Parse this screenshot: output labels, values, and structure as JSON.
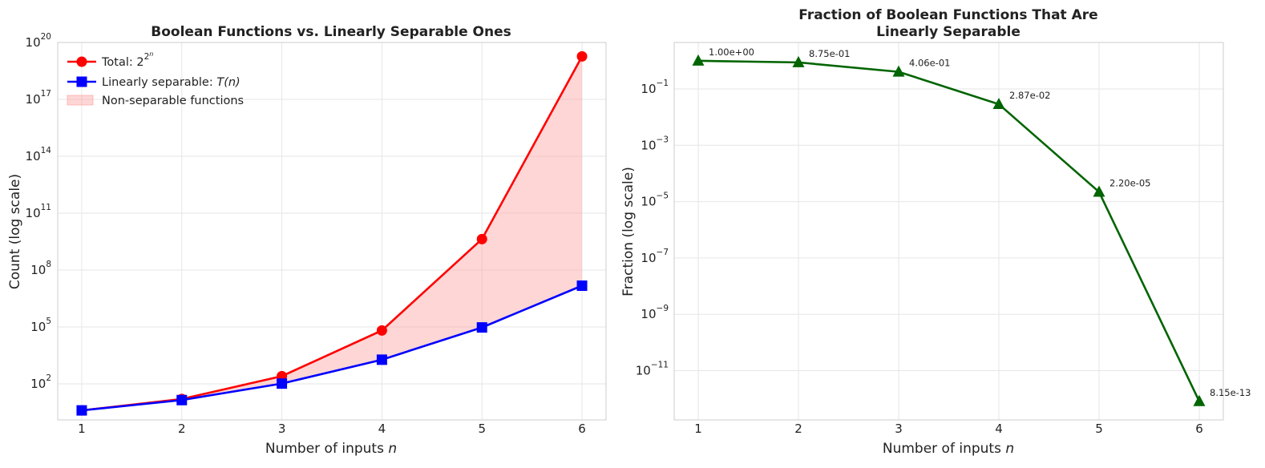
{
  "chart_data": [
    {
      "type": "line",
      "title": "Boolean Functions vs. Linearly Separable Ones",
      "xlabel": "Number of inputs n",
      "ylabel": "Count (log scale)",
      "yscale": "log",
      "grid": true,
      "legend_position": "top-left",
      "x": [
        1,
        2,
        3,
        4,
        5,
        6
      ],
      "x_ticks": [
        "1",
        "2",
        "3",
        "4",
        "5",
        "6"
      ],
      "y_ticks": [
        {
          "base": "10",
          "exp": "2",
          "value": 100.0
        },
        {
          "base": "10",
          "exp": "5",
          "value": 100000.0
        },
        {
          "base": "10",
          "exp": "8",
          "value": 100000000.0
        },
        {
          "base": "10",
          "exp": "11",
          "value": 100000000000.0
        },
        {
          "base": "10",
          "exp": "14",
          "value": 100000000000000.0
        },
        {
          "base": "10",
          "exp": "17",
          "value": 1e+17
        },
        {
          "base": "10",
          "exp": "20",
          "value": 1e+20
        }
      ],
      "series": [
        {
          "name": "Total: 2^(2^n)",
          "legend_label": "Total: ",
          "legend_math": {
            "base": "2",
            "exp": "2",
            "exp2": "n"
          },
          "color": "#ff0000",
          "marker": "circle",
          "values": [
            4,
            16,
            256,
            65536,
            4294967296,
            1.8446744e+19
          ]
        },
        {
          "name": "Linearly separable: T(n)",
          "legend_label": "Linearly separable: ",
          "legend_math": {
            "text": "T(n)"
          },
          "color": "#0000ff",
          "marker": "square",
          "values": [
            4,
            14,
            104,
            1882,
            94572,
            15028134
          ]
        }
      ],
      "fill_between": {
        "name": "Non-separable functions",
        "color": "#ff9999",
        "opacity": 0.4
      }
    },
    {
      "type": "line",
      "title": "Fraction of Boolean Functions That Are\nLinearly Separable",
      "xlabel": "Number of inputs n",
      "ylabel": "Fraction (log scale)",
      "yscale": "log",
      "grid": true,
      "x": [
        1,
        2,
        3,
        4,
        5,
        6
      ],
      "x_ticks": [
        "1",
        "2",
        "3",
        "4",
        "5",
        "6"
      ],
      "y_ticks": [
        {
          "base": "10",
          "exp": "−1",
          "value": 0.1
        },
        {
          "base": "10",
          "exp": "−3",
          "value": 0.001
        },
        {
          "base": "10",
          "exp": "−5",
          "value": 1e-05
        },
        {
          "base": "10",
          "exp": "−7",
          "value": 1e-07
        },
        {
          "base": "10",
          "exp": "−9",
          "value": 1e-09
        },
        {
          "base": "10",
          "exp": "−11",
          "value": 1e-11
        }
      ],
      "series": [
        {
          "name": "Fraction",
          "color": "#006400",
          "marker": "triangle",
          "values": [
            1.0,
            0.875,
            0.406,
            0.0287,
            2.2e-05,
            8.15e-13
          ]
        }
      ],
      "annotations": [
        "1.00e+00",
        "8.75e-01",
        "4.06e-01",
        "2.87e-02",
        "2.20e-05",
        "8.15e-13"
      ]
    }
  ]
}
